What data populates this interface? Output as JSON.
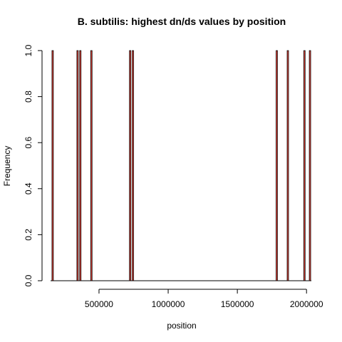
{
  "chart_data": {
    "type": "bar",
    "title": "B. subtilis: highest dn/ds values by position",
    "xlabel": "position",
    "ylabel": "Frequency",
    "xlim": [
      150000,
      2035000
    ],
    "ylim": [
      0,
      1
    ],
    "x_ticks": [
      500000,
      1000000,
      1500000,
      2000000
    ],
    "x_tick_labels": [
      "500000",
      "1000000",
      "1500000",
      "2000000"
    ],
    "y_ticks": [
      0,
      0.2,
      0.4,
      0.6,
      0.8,
      1
    ],
    "y_tick_labels": [
      "0.0",
      "0.2",
      "0.4",
      "0.6",
      "0.8",
      "1.0"
    ],
    "bin_width": 10000,
    "bars": [
      {
        "x": 165000,
        "value": 1
      },
      {
        "x": 345000,
        "value": 1
      },
      {
        "x": 365000,
        "value": 1
      },
      {
        "x": 445000,
        "value": 1
      },
      {
        "x": 725000,
        "value": 1
      },
      {
        "x": 745000,
        "value": 1
      },
      {
        "x": 1785000,
        "value": 1
      },
      {
        "x": 1865000,
        "value": 1
      },
      {
        "x": 1985000,
        "value": 1
      },
      {
        "x": 2025000,
        "value": 1
      }
    ],
    "bar_color": "#e8463c",
    "bar_outline": "#000000",
    "grid": false,
    "legend": "none"
  }
}
